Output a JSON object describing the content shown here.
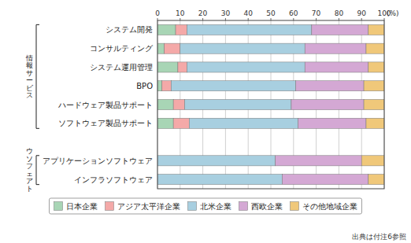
{
  "chart_data": {
    "type": "bar",
    "orientation": "horizontal",
    "stacked": true,
    "categories": [
      "システム開発",
      "コンサルティング",
      "システム運用管理",
      "BPO",
      "ハードウェア製品サポート",
      "ソフトウェア製品サポート",
      null,
      "アプリケーションソフトウェア",
      "インフラソフトウェア"
    ],
    "series": [
      {
        "name": "日本企業",
        "color": "#a8d5b5",
        "values": [
          8,
          3,
          9,
          2,
          7,
          7,
          0,
          0,
          0
        ]
      },
      {
        "name": "アジア太平洋企業",
        "color": "#f4a9a8",
        "values": [
          5,
          7,
          4,
          4,
          5,
          7,
          0,
          0,
          0
        ]
      },
      {
        "name": "北米企業",
        "color": "#a8cfe0",
        "values": [
          55,
          55,
          52,
          55,
          47,
          48,
          0,
          52,
          55
        ]
      },
      {
        "name": "西欧企業",
        "color": "#d4a8d4",
        "values": [
          25,
          27,
          28,
          30,
          32,
          30,
          0,
          38,
          38
        ]
      },
      {
        "name": "その他地域企業",
        "color": "#f0c87a",
        "values": [
          7,
          8,
          7,
          9,
          9,
          8,
          0,
          10,
          7
        ]
      }
    ],
    "xlim": [
      0,
      100
    ],
    "xticks": [
      0,
      10,
      20,
      30,
      40,
      50,
      60,
      70,
      80,
      90,
      100
    ],
    "grid": true,
    "legend": "bottom",
    "annotations": [
      "(%)",
      "出典は付注6参照",
      "情\n報\nサ\nー\nビ\nス",
      "ウ\nソ\nフ\nェ\nア\nト"
    ]
  }
}
